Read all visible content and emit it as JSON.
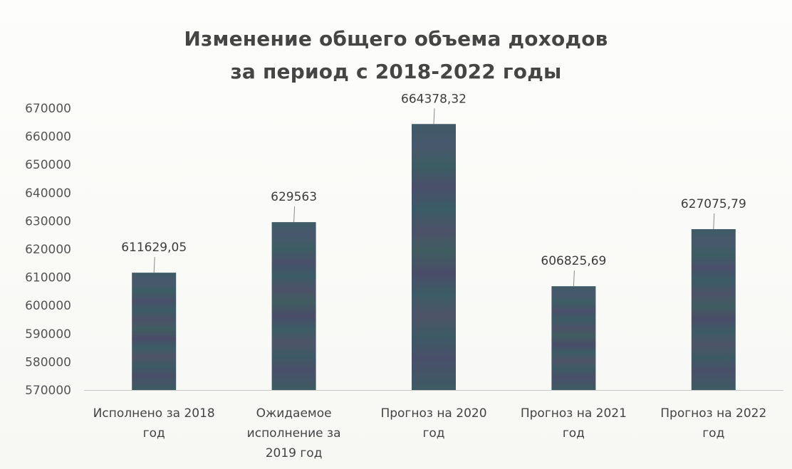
{
  "chart_data": {
    "type": "bar",
    "title": "Изменение общего объема доходов за период с 2018-2022 годы",
    "title_lines": [
      "Изменение общего объема доходов",
      "за период с 2018-2022 годы"
    ],
    "categories": [
      [
        "Исполнено за 2018",
        "год"
      ],
      [
        "Ожидаемое",
        "исполнение за",
        "2019 год"
      ],
      [
        "Прогноз на 2020",
        "год"
      ],
      [
        "Прогноз на 2021",
        "год"
      ],
      [
        "Прогноз на 2022",
        "год"
      ]
    ],
    "values": [
      611629.05,
      629563,
      664378.32,
      606825.69,
      627075.79
    ],
    "data_labels": [
      "611629,05",
      "629563",
      "664378,32",
      "606825,69",
      "627075,79"
    ],
    "ylim": [
      570000,
      670000
    ],
    "yticks": [
      570000,
      580000,
      590000,
      600000,
      610000,
      620000,
      630000,
      640000,
      650000,
      660000,
      670000
    ],
    "grid": false,
    "legend": "none",
    "xlabel": "",
    "ylabel": "",
    "bar_color": "#3e5867",
    "axis_color": "#c8c8c8"
  }
}
